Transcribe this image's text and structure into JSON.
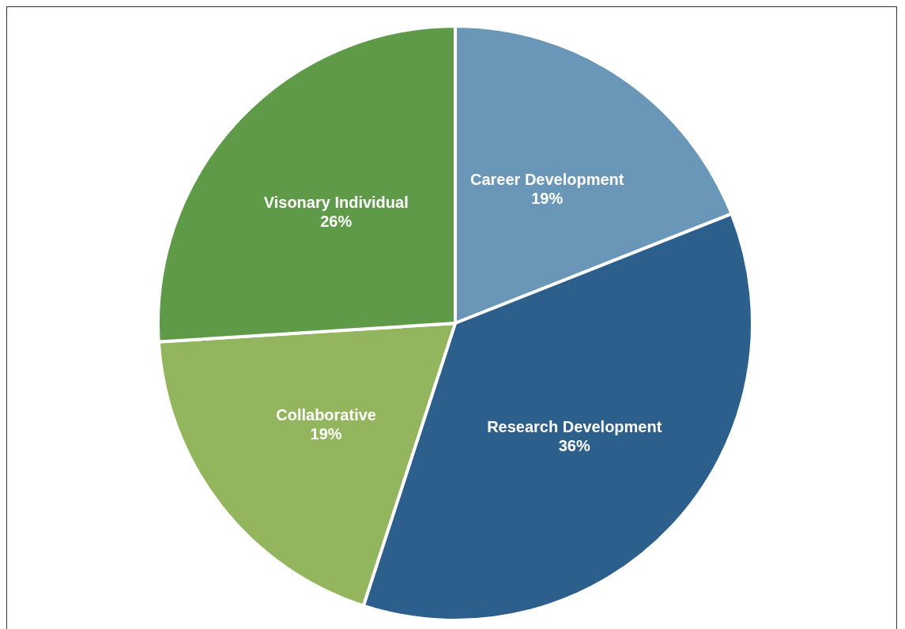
{
  "chart_data": {
    "type": "pie",
    "categories": [
      "Career Development",
      "Research Development",
      "Collaborative",
      "Visonary Individual"
    ],
    "values": [
      19,
      36,
      19,
      26
    ],
    "colors": [
      "#6a97b8",
      "#2c5f8c",
      "#92b55d",
      "#5e9a47"
    ],
    "value_labels": [
      "19%",
      "36%",
      "19%",
      "26%"
    ],
    "legend": false
  }
}
